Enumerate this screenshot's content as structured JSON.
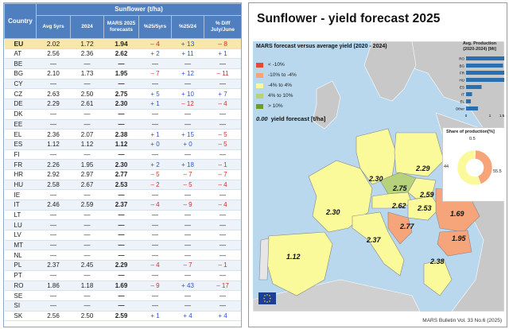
{
  "table": {
    "header_country": "Country",
    "header_group": "Sunflower (t/ha)",
    "columns": [
      "Avg 5yrs",
      "2024",
      "MARS 2025 forecasts",
      "%25/5yrs",
      "%25/24",
      "% Diff July/June"
    ],
    "rows": [
      {
        "cc": "EU",
        "avg": "2.02",
        "y24": "1.72",
        "mars": "1.94",
        "p5": "– 4",
        "p24": "+ 13",
        "diff": "– 8"
      },
      {
        "cc": "AT",
        "avg": "2.56",
        "y24": "2.36",
        "mars": "2.62",
        "p5": "+ 2",
        "p24": "+ 11",
        "diff": "+ 1"
      },
      {
        "cc": "BE",
        "avg": "—",
        "y24": "—",
        "mars": "—",
        "p5": "—",
        "p24": "—",
        "diff": "—"
      },
      {
        "cc": "BG",
        "avg": "2.10",
        "y24": "1.73",
        "mars": "1.95",
        "p5": "– 7",
        "p24": "+ 12",
        "diff": "– 11"
      },
      {
        "cc": "CY",
        "avg": "—",
        "y24": "—",
        "mars": "—",
        "p5": "—",
        "p24": "—",
        "diff": "—"
      },
      {
        "cc": "CZ",
        "avg": "2.63",
        "y24": "2.50",
        "mars": "2.75",
        "p5": "+ 5",
        "p24": "+ 10",
        "diff": "+ 7"
      },
      {
        "cc": "DE",
        "avg": "2.29",
        "y24": "2.61",
        "mars": "2.30",
        "p5": "+ 1",
        "p24": "– 12",
        "diff": "– 4"
      },
      {
        "cc": "DK",
        "avg": "—",
        "y24": "—",
        "mars": "—",
        "p5": "—",
        "p24": "—",
        "diff": "—"
      },
      {
        "cc": "EE",
        "avg": "—",
        "y24": "—",
        "mars": "—",
        "p5": "—",
        "p24": "—",
        "diff": "—"
      },
      {
        "cc": "EL",
        "avg": "2.36",
        "y24": "2.07",
        "mars": "2.38",
        "p5": "+ 1",
        "p24": "+ 15",
        "diff": "– 5"
      },
      {
        "cc": "ES",
        "avg": "1.12",
        "y24": "1.12",
        "mars": "1.12",
        "p5": "+ 0",
        "p24": "+ 0",
        "diff": "– 5"
      },
      {
        "cc": "FI",
        "avg": "—",
        "y24": "—",
        "mars": "—",
        "p5": "—",
        "p24": "—",
        "diff": "—"
      },
      {
        "cc": "FR",
        "avg": "2.26",
        "y24": "1.95",
        "mars": "2.30",
        "p5": "+ 2",
        "p24": "+ 18",
        "diff": "– 1"
      },
      {
        "cc": "HR",
        "avg": "2.92",
        "y24": "2.97",
        "mars": "2.77",
        "p5": "– 5",
        "p24": "– 7",
        "diff": "– 7"
      },
      {
        "cc": "HU",
        "avg": "2.58",
        "y24": "2.67",
        "mars": "2.53",
        "p5": "– 2",
        "p24": "– 5",
        "diff": "– 4"
      },
      {
        "cc": "IE",
        "avg": "—",
        "y24": "—",
        "mars": "—",
        "p5": "—",
        "p24": "—",
        "diff": "—"
      },
      {
        "cc": "IT",
        "avg": "2.46",
        "y24": "2.59",
        "mars": "2.37",
        "p5": "– 4",
        "p24": "– 9",
        "diff": "– 4"
      },
      {
        "cc": "LT",
        "avg": "—",
        "y24": "—",
        "mars": "—",
        "p5": "—",
        "p24": "—",
        "diff": "—"
      },
      {
        "cc": "LU",
        "avg": "—",
        "y24": "—",
        "mars": "—",
        "p5": "—",
        "p24": "—",
        "diff": "—"
      },
      {
        "cc": "LV",
        "avg": "—",
        "y24": "—",
        "mars": "—",
        "p5": "—",
        "p24": "—",
        "diff": "—"
      },
      {
        "cc": "MT",
        "avg": "—",
        "y24": "—",
        "mars": "—",
        "p5": "—",
        "p24": "—",
        "diff": "—"
      },
      {
        "cc": "NL",
        "avg": "—",
        "y24": "—",
        "mars": "—",
        "p5": "—",
        "p24": "—",
        "diff": "—"
      },
      {
        "cc": "PL",
        "avg": "2.37",
        "y24": "2.45",
        "mars": "2.29",
        "p5": "– 4",
        "p24": "– 7",
        "diff": "– 1"
      },
      {
        "cc": "PT",
        "avg": "—",
        "y24": "—",
        "mars": "—",
        "p5": "—",
        "p24": "—",
        "diff": "—"
      },
      {
        "cc": "RO",
        "avg": "1.86",
        "y24": "1.18",
        "mars": "1.69",
        "p5": "– 9",
        "p24": "+ 43",
        "diff": "– 17"
      },
      {
        "cc": "SE",
        "avg": "—",
        "y24": "—",
        "mars": "—",
        "p5": "—",
        "p24": "—",
        "diff": "—"
      },
      {
        "cc": "SI",
        "avg": "—",
        "y24": "—",
        "mars": "—",
        "p5": "—",
        "p24": "—",
        "diff": "—"
      },
      {
        "cc": "SK",
        "avg": "2.56",
        "y24": "2.50",
        "mars": "2.59",
        "p5": "+ 1",
        "p24": "+ 4",
        "diff": "+ 4"
      }
    ]
  },
  "panel": {
    "title": "Sunflower - yield forecast 2025",
    "footer": "MARS Bulletin Vol. 33 No.6 (2025)",
    "legend": {
      "title": "MARS forecast versus average yield (2020 - 2024)",
      "items": [
        {
          "label": "< -10%",
          "color": "#e8473c"
        },
        {
          "label": "-10% to -4%",
          "color": "#f6a57a"
        },
        {
          "label": "-4% to 4%",
          "color": "#fafa9a"
        },
        {
          "label": "4% to 10%",
          "color": "#b6d27a"
        },
        {
          "label": "> 10%",
          "color": "#6f9a2c"
        }
      ],
      "unit_value": "0.00",
      "unit_label": "yield forecast [t/ha]"
    },
    "map_values": [
      "2.29",
      "2.30",
      "2.75",
      "2.59",
      "2.62",
      "2.53",
      "1.69",
      "2.30",
      "2.77",
      "1.95",
      "2.37",
      "1.12",
      "2.38"
    ],
    "production": {
      "title": "Avg. Production (2020-2024) [Mt]",
      "countries": [
        "RO",
        "BG",
        "FR",
        "HU",
        "ES",
        "IT",
        "EL",
        "Other"
      ],
      "values": [
        1.85,
        1.55,
        1.6,
        1.6,
        0.65,
        0.25,
        0.2,
        0.5
      ],
      "ticks": [
        "0",
        "1",
        "1.5"
      ]
    },
    "share": {
      "title": "Share of production[%]",
      "labels": [
        "0.5",
        "44",
        "55.5"
      ],
      "values": [
        0.5,
        44,
        55.5
      ],
      "colors": [
        "#cfe08a",
        "#f6a57a",
        "#fafa9a"
      ]
    }
  }
}
